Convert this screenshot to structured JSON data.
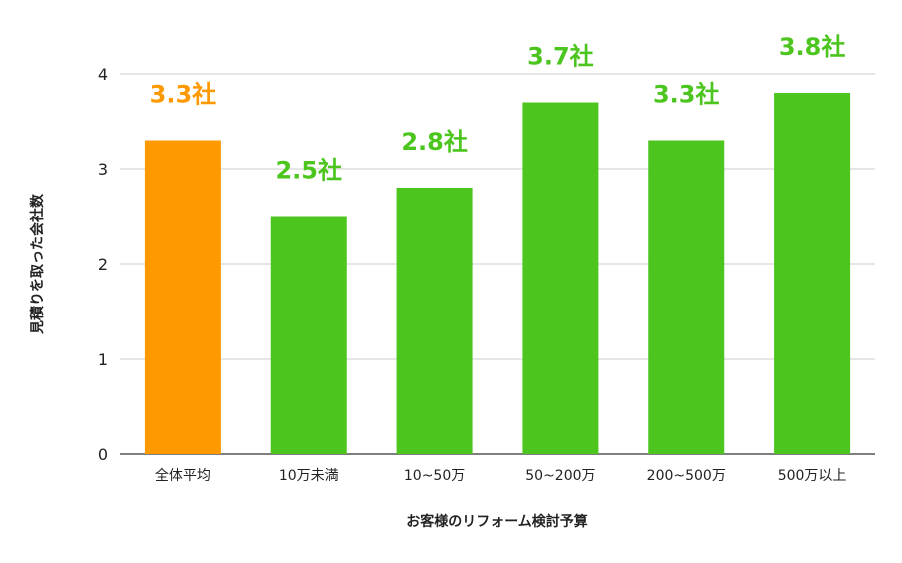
{
  "chart_data": {
    "type": "bar",
    "title": "",
    "xlabel": "お客様のリフォーム検討予算",
    "ylabel": "見積りを取った会社数",
    "ylim": [
      0,
      4
    ],
    "yticks": [
      "0",
      "1",
      "2",
      "3",
      "4"
    ],
    "grid": true,
    "categories": [
      "全体平均",
      "10万未満",
      "10~50万",
      "50~200万",
      "200~500万",
      "500万以上"
    ],
    "values": [
      3.3,
      2.5,
      2.8,
      3.7,
      3.3,
      3.8
    ],
    "data_labels": [
      "3.3社",
      "2.5社",
      "2.8社",
      "3.7社",
      "3.3社",
      "3.8社"
    ],
    "colors": {
      "highlight": "#FF9900",
      "default": "#4CC61E",
      "grid": "#CCCCCC",
      "axis_text": "#222222"
    },
    "highlight_index": 0
  }
}
